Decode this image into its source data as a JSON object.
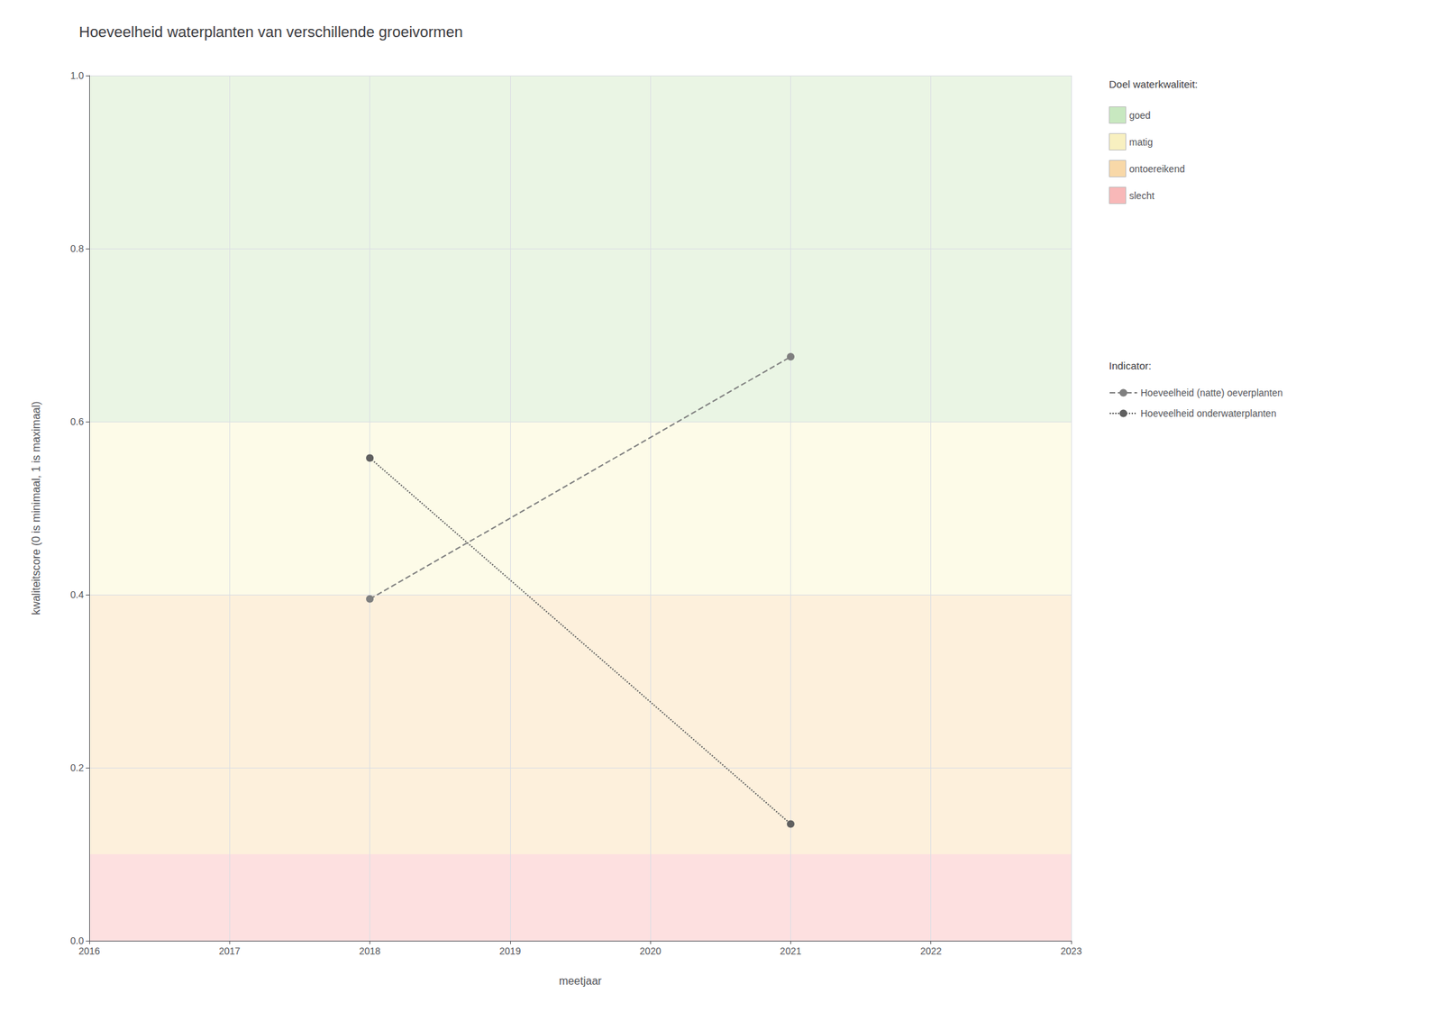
{
  "chart_data": {
    "type": "line",
    "title": "Hoeveelheid waterplanten van verschillende groeivormen",
    "x_label": "meetjaar",
    "y_label": "kwaliteitscore (0 is minimaal, 1 is maximaal)",
    "xlim": [
      2016,
      2023
    ],
    "xticks": [
      2016,
      2017,
      2018,
      2019,
      2020,
      2021,
      2022,
      2023
    ],
    "ylim": [
      0.0,
      1.0
    ],
    "yticks": [
      {
        "value": 0.0,
        "label": "0.0"
      },
      0.2,
      0.4,
      0.6,
      0.8,
      {
        "value": 1.0,
        "label": "1.0"
      }
    ],
    "grid": true,
    "legend": "right",
    "x": [
      2018,
      2021
    ],
    "series": [
      {
        "name": "Hoeveelheid (natte) oeverplanten",
        "color": "#7f7f7f",
        "line_style": "dashed",
        "marker": "circle",
        "values": [
          0.395,
          0.675
        ]
      },
      {
        "name": "Hoeveelheid onderwaterplanten",
        "color": "#606060",
        "line_style": "dotted",
        "marker": "circle",
        "values": [
          0.558,
          0.135
        ]
      }
    ],
    "bands": [
      {
        "name": "goed",
        "from": 0.6,
        "to": 1.0,
        "color": "#eaf5e4",
        "legend_color": "#c8e8c0"
      },
      {
        "name": "matig",
        "from": 0.4,
        "to": 0.6,
        "color": "#fdfbe8",
        "legend_color": "#f8f0c0"
      },
      {
        "name": "ontoereikend",
        "from": 0.1,
        "to": 0.4,
        "color": "#fdf0dc",
        "legend_color": "#f8d8a8"
      },
      {
        "name": "slecht",
        "from": 0.0,
        "to": 0.1,
        "color": "#fde0e0",
        "legend_color": "#f8b8b8"
      }
    ],
    "band_legend_title": "Doel waterkwaliteit:",
    "series_legend_title": "Indicator:"
  }
}
